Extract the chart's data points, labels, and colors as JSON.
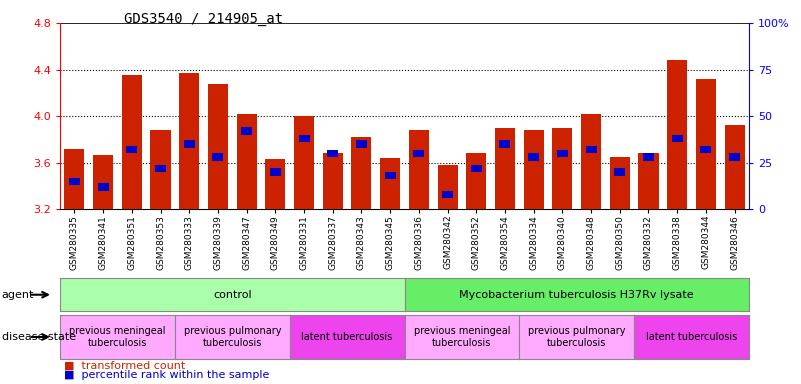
{
  "title": "GDS3540 / 214905_at",
  "samples": [
    "GSM280335",
    "GSM280341",
    "GSM280351",
    "GSM280353",
    "GSM280333",
    "GSM280339",
    "GSM280347",
    "GSM280349",
    "GSM280331",
    "GSM280337",
    "GSM280343",
    "GSM280345",
    "GSM280336",
    "GSM280342",
    "GSM280352",
    "GSM280354",
    "GSM280334",
    "GSM280340",
    "GSM280348",
    "GSM280350",
    "GSM280332",
    "GSM280338",
    "GSM280344",
    "GSM280346"
  ],
  "transformed_counts": [
    3.72,
    3.67,
    4.35,
    3.88,
    4.37,
    4.28,
    4.02,
    3.63,
    4.0,
    3.68,
    3.82,
    3.64,
    3.88,
    3.58,
    3.68,
    3.9,
    3.88,
    3.9,
    4.02,
    3.65,
    3.68,
    4.48,
    4.32,
    3.92
  ],
  "percentile_ranks": [
    15,
    12,
    32,
    22,
    35,
    28,
    42,
    20,
    38,
    30,
    35,
    18,
    30,
    8,
    22,
    35,
    28,
    30,
    32,
    20,
    28,
    38,
    32,
    28
  ],
  "ylim_left": [
    3.2,
    4.8
  ],
  "ylim_right": [
    0,
    100
  ],
  "yticks_left": [
    3.2,
    3.6,
    4.0,
    4.4,
    4.8
  ],
  "yticks_right": [
    0,
    25,
    50,
    75,
    100
  ],
  "ytick_labels_right": [
    "0",
    "25",
    "50",
    "75",
    "100%"
  ],
  "bar_color": "#cc2200",
  "percentile_color": "#0000cc",
  "agent_groups": [
    {
      "label": "control",
      "start": 0,
      "end": 11,
      "color": "#aaffaa"
    },
    {
      "label": "Mycobacterium tuberculosis H37Rv lysate",
      "start": 12,
      "end": 23,
      "color": "#66ee66"
    }
  ],
  "disease_groups": [
    {
      "label": "previous meningeal\ntuberculosis",
      "start": 0,
      "end": 3,
      "color": "#ffaaff"
    },
    {
      "label": "previous pulmonary\ntuberculosis",
      "start": 4,
      "end": 7,
      "color": "#ffaaff"
    },
    {
      "label": "latent tuberculosis",
      "start": 8,
      "end": 11,
      "color": "#ee44ee"
    },
    {
      "label": "previous meningeal\ntuberculosis",
      "start": 12,
      "end": 15,
      "color": "#ffaaff"
    },
    {
      "label": "previous pulmonary\ntuberculosis",
      "start": 16,
      "end": 19,
      "color": "#ffaaff"
    },
    {
      "label": "latent tuberculosis",
      "start": 20,
      "end": 23,
      "color": "#ee44ee"
    }
  ],
  "background_color": "#ffffff",
  "xtick_bg": "#cccccc"
}
